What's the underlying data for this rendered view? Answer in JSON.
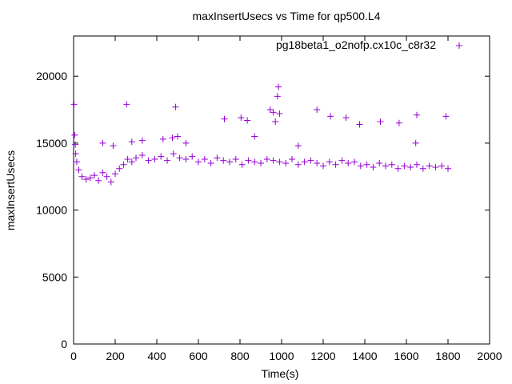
{
  "chart_data": {
    "type": "scatter",
    "title": "maxInsertUsecs vs Time for qp500.L4",
    "xlabel": "Time(s)",
    "ylabel": "maxInsertUsecs",
    "xlim": [
      0,
      2000
    ],
    "ylim": [
      0,
      23000
    ],
    "x_ticks": [
      0,
      200,
      400,
      600,
      800,
      1000,
      1200,
      1400,
      1600,
      1800,
      2000
    ],
    "y_ticks": [
      0,
      5000,
      10000,
      15000,
      20000
    ],
    "grid": false,
    "legend_position": "top-right",
    "series": [
      {
        "name": "pg18beta1_o2nofp.cx10c_c8r32",
        "color": "#9400d3",
        "marker": "plus",
        "points": [
          [
            2,
            17900
          ],
          [
            5,
            15600
          ],
          [
            8,
            14900
          ],
          [
            10,
            14200
          ],
          [
            15,
            13600
          ],
          [
            25,
            13000
          ],
          [
            40,
            12500
          ],
          [
            60,
            12300
          ],
          [
            80,
            12400
          ],
          [
            100,
            12600
          ],
          [
            120,
            12200
          ],
          [
            140,
            12800
          ],
          [
            160,
            12500
          ],
          [
            180,
            12100
          ],
          [
            200,
            12700
          ],
          [
            220,
            13100
          ],
          [
            240,
            13400
          ],
          [
            260,
            13800
          ],
          [
            280,
            13600
          ],
          [
            300,
            13900
          ],
          [
            330,
            14100
          ],
          [
            360,
            13700
          ],
          [
            390,
            13800
          ],
          [
            420,
            14000
          ],
          [
            450,
            13700
          ],
          [
            480,
            14200
          ],
          [
            510,
            13900
          ],
          [
            540,
            13800
          ],
          [
            570,
            14000
          ],
          [
            600,
            13600
          ],
          [
            630,
            13800
          ],
          [
            660,
            13500
          ],
          [
            690,
            13900
          ],
          [
            720,
            13700
          ],
          [
            750,
            13600
          ],
          [
            780,
            13800
          ],
          [
            810,
            13400
          ],
          [
            840,
            13700
          ],
          [
            870,
            13600
          ],
          [
            900,
            13500
          ],
          [
            930,
            13800
          ],
          [
            960,
            13700
          ],
          [
            990,
            13600
          ],
          [
            1020,
            13500
          ],
          [
            1050,
            13800
          ],
          [
            1080,
            13400
          ],
          [
            1110,
            13600
          ],
          [
            1140,
            13700
          ],
          [
            1170,
            13500
          ],
          [
            1200,
            13300
          ],
          [
            1230,
            13600
          ],
          [
            1260,
            13400
          ],
          [
            1290,
            13700
          ],
          [
            1320,
            13500
          ],
          [
            1350,
            13600
          ],
          [
            1380,
            13300
          ],
          [
            1410,
            13400
          ],
          [
            1440,
            13200
          ],
          [
            1470,
            13500
          ],
          [
            1500,
            13300
          ],
          [
            1530,
            13400
          ],
          [
            1560,
            13100
          ],
          [
            1590,
            13300
          ],
          [
            1620,
            13200
          ],
          [
            1650,
            13400
          ],
          [
            1680,
            13100
          ],
          [
            1710,
            13300
          ],
          [
            1740,
            13200
          ],
          [
            1770,
            13300
          ],
          [
            1800,
            13100
          ],
          [
            255,
            17900
          ],
          [
            490,
            17700
          ],
          [
            725,
            16800
          ],
          [
            805,
            16900
          ],
          [
            835,
            16700
          ],
          [
            870,
            15500
          ],
          [
            945,
            17500
          ],
          [
            960,
            17300
          ],
          [
            970,
            16600
          ],
          [
            980,
            18500
          ],
          [
            985,
            19200
          ],
          [
            990,
            17200
          ],
          [
            1080,
            14800
          ],
          [
            1170,
            17500
          ],
          [
            1235,
            17000
          ],
          [
            1310,
            16900
          ],
          [
            1375,
            16400
          ],
          [
            1475,
            16600
          ],
          [
            1565,
            16500
          ],
          [
            1645,
            15000
          ],
          [
            1650,
            17100
          ],
          [
            1790,
            17000
          ],
          [
            140,
            15000
          ],
          [
            190,
            14800
          ],
          [
            280,
            15100
          ],
          [
            330,
            15200
          ],
          [
            430,
            15300
          ],
          [
            475,
            15400
          ],
          [
            500,
            15500
          ],
          [
            540,
            15000
          ]
        ]
      }
    ]
  }
}
